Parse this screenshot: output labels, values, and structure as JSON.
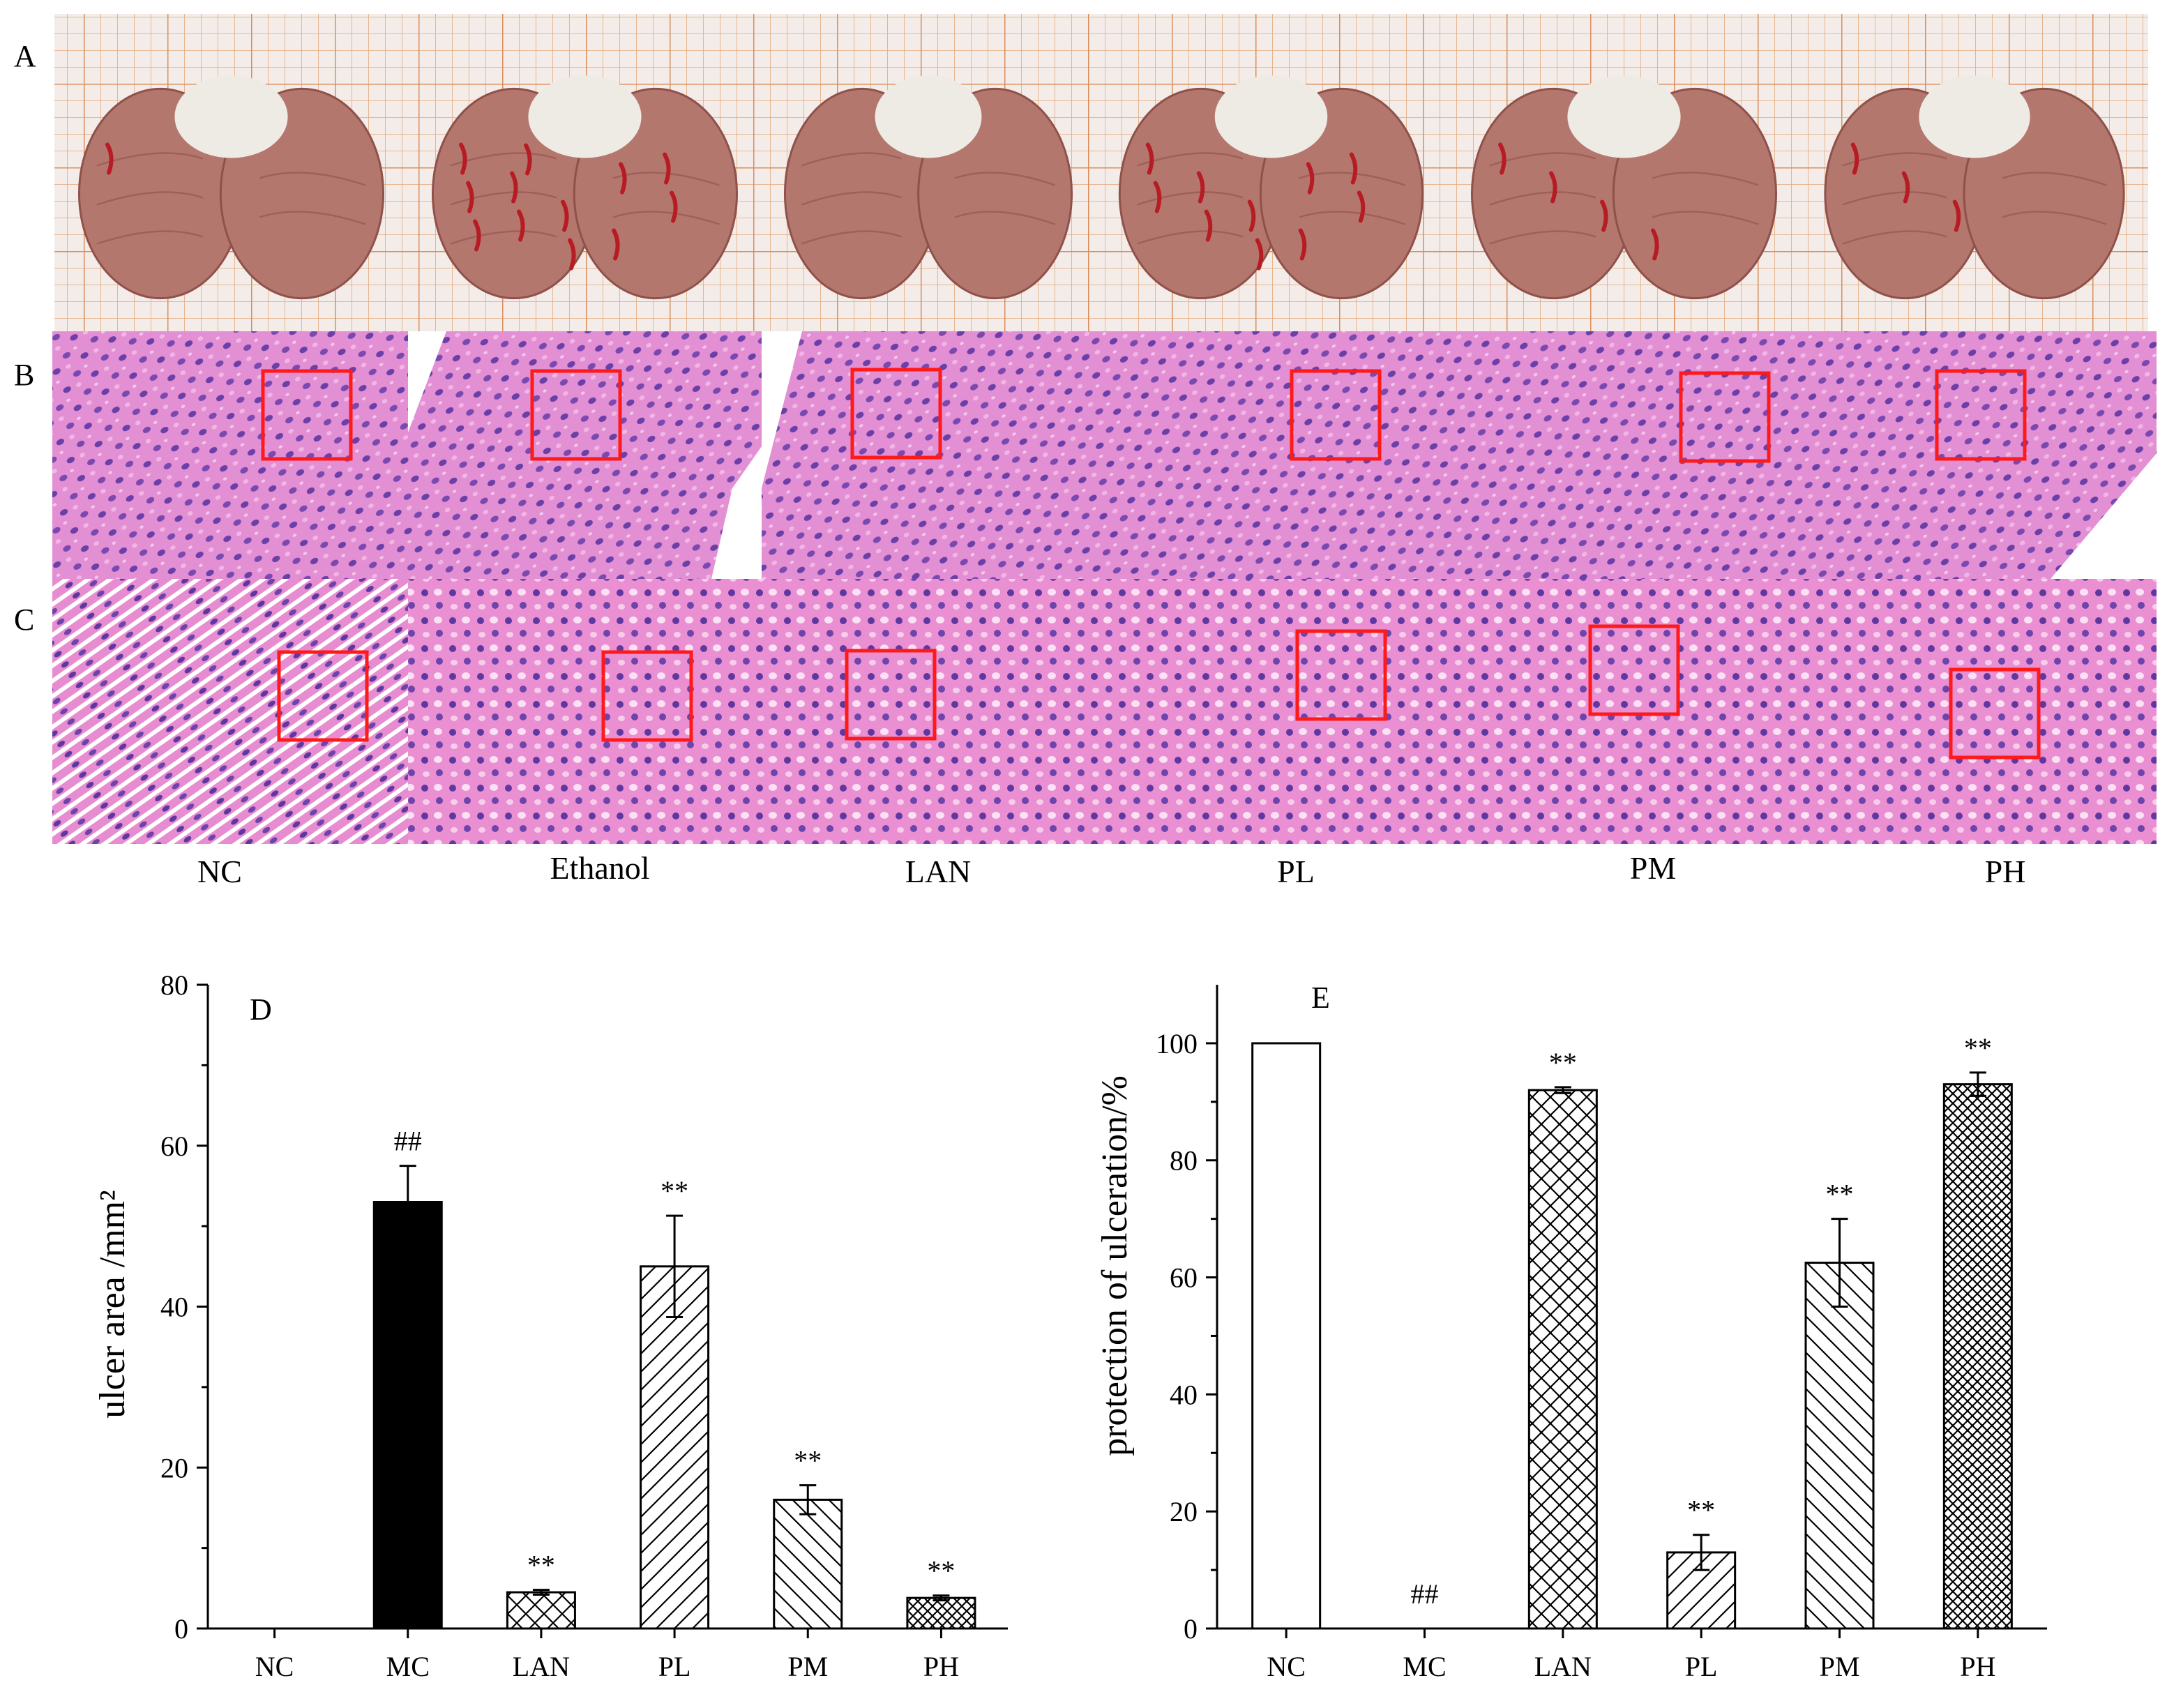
{
  "row_labels": [
    "A",
    "B",
    "C"
  ],
  "column_labels": [
    "NC",
    "Ethanol",
    "LAN",
    "PL",
    "PM",
    "PH"
  ],
  "photos": {
    "A": {
      "kind": "gross stomach photographs on grid paper",
      "colors": {
        "grid_bg": "#f3ece8",
        "grid_line": "#e4a87a",
        "tissue": "#b4776e",
        "tissue_dark": "#8f514a",
        "forestomach": "#eeeae4",
        "hemorrhage": "#b71c24"
      },
      "hemorrhage_level": [
        0.05,
        0.85,
        0.0,
        0.7,
        0.3,
        0.2
      ]
    },
    "B": {
      "kind": "H&E section low magnification",
      "colors": {
        "stain": "#e38fd4",
        "nuclei": "#6a3fa8",
        "roi": "#ff1a1a"
      }
    },
    "C": {
      "kind": "H&E section high magnification",
      "colors": {
        "stain": "#ea8fd2",
        "nuclei": "#5e38a0",
        "roi": "#ff1a1a"
      }
    }
  },
  "chart_data": [
    {
      "type": "bar",
      "panel_label": "D",
      "categories": [
        "NC",
        "MC",
        "LAN",
        "PL",
        "PM",
        "PH"
      ],
      "values": [
        0,
        53,
        4.5,
        45,
        16,
        3.8
      ],
      "errors": [
        0,
        4.5,
        0.3,
        6.3,
        1.8,
        0.3
      ],
      "ylabel": "ulcer area /mm²",
      "ylim": [
        0,
        80
      ],
      "yticks": [
        0,
        20,
        40,
        60,
        80
      ],
      "significance": [
        "",
        "##",
        "**",
        "**",
        "**",
        "**"
      ],
      "fills": [
        "none",
        "solid",
        "crosshatch",
        "diag-right",
        "diag-left",
        "dense-crosshatch"
      ]
    },
    {
      "type": "bar",
      "panel_label": "E",
      "categories": [
        "NC",
        "MC",
        "LAN",
        "PL",
        "PM",
        "PH"
      ],
      "values": [
        100,
        0,
        92,
        13,
        62.5,
        93
      ],
      "errors": [
        0,
        0,
        0.5,
        3,
        7.5,
        2
      ],
      "ylabel": "protection of ulceration/%",
      "ylim": [
        0,
        110
      ],
      "yticks": [
        0,
        20,
        40,
        60,
        80,
        100
      ],
      "significance": [
        "",
        "##",
        "**",
        "**",
        "**",
        "**"
      ],
      "fills": [
        "none",
        "none",
        "crosshatch",
        "diag-right",
        "diag-left",
        "dense-crosshatch"
      ]
    }
  ]
}
